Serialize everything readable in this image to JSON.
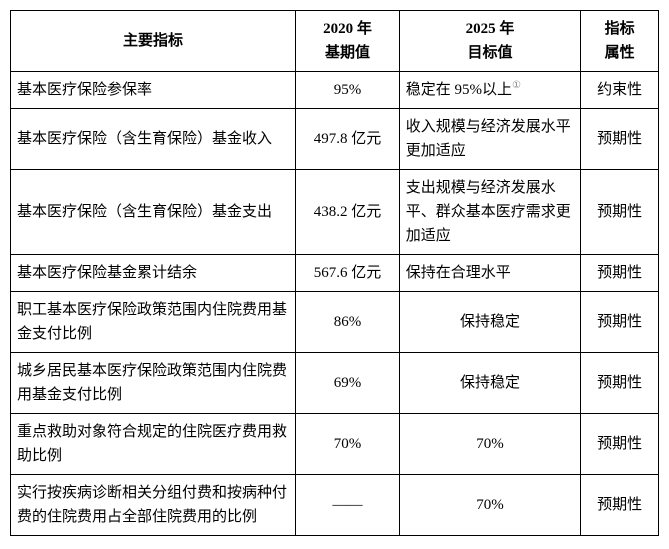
{
  "table": {
    "headers": {
      "indicator": "主要指标",
      "base_line1": "2020 年",
      "base_line2": "基期值",
      "target_line1": "2025 年",
      "target_line2": "目标值",
      "attr_line1": "指标",
      "attr_line2": "属性"
    },
    "rows": [
      {
        "indicator": "基本医疗保险参保率",
        "base": "95%",
        "target": "稳定在 95%以上",
        "target_note": "①",
        "attr": "约束性"
      },
      {
        "indicator": "基本医疗保险（含生育保险）基金收入",
        "base": "497.8 亿元",
        "target": "收入规模与经济发展水平更加适应",
        "attr": "预期性"
      },
      {
        "indicator": "基本医疗保险（含生育保险）基金支出",
        "base": "438.2 亿元",
        "target": "支出规模与经济发展水平、群众基本医疗需求更加适应",
        "attr": "预期性"
      },
      {
        "indicator": "基本医疗保险基金累计结余",
        "base": "567.6 亿元",
        "target": "保持在合理水平",
        "attr": "预期性"
      },
      {
        "indicator": "职工基本医疗保险政策范围内住院费用基金支付比例",
        "base": "86%",
        "target": "保持稳定",
        "attr": "预期性"
      },
      {
        "indicator": "城乡居民基本医疗保险政策范围内住院费用基金支付比例",
        "base": "69%",
        "target": "保持稳定",
        "attr": "预期性"
      },
      {
        "indicator": "重点救助对象符合规定的住院医疗费用救助比例",
        "base": "70%",
        "target": "70%",
        "attr": "预期性"
      },
      {
        "indicator": "实行按疾病诊断相关分组付费和按病种付费的住院费用占全部住院费用的比例",
        "base": "——",
        "target": "70%",
        "attr": "预期性"
      }
    ],
    "columns_align": {
      "indicator": "left",
      "base": "center",
      "target_left_rows": [
        0,
        1,
        2,
        3
      ],
      "attr": "center"
    },
    "style": {
      "border_color": "#000000",
      "background_color": "#ffffff",
      "text_color": "#000000",
      "font_family": "SimSun",
      "font_size_pt": 11,
      "header_font_weight": "bold"
    }
  }
}
